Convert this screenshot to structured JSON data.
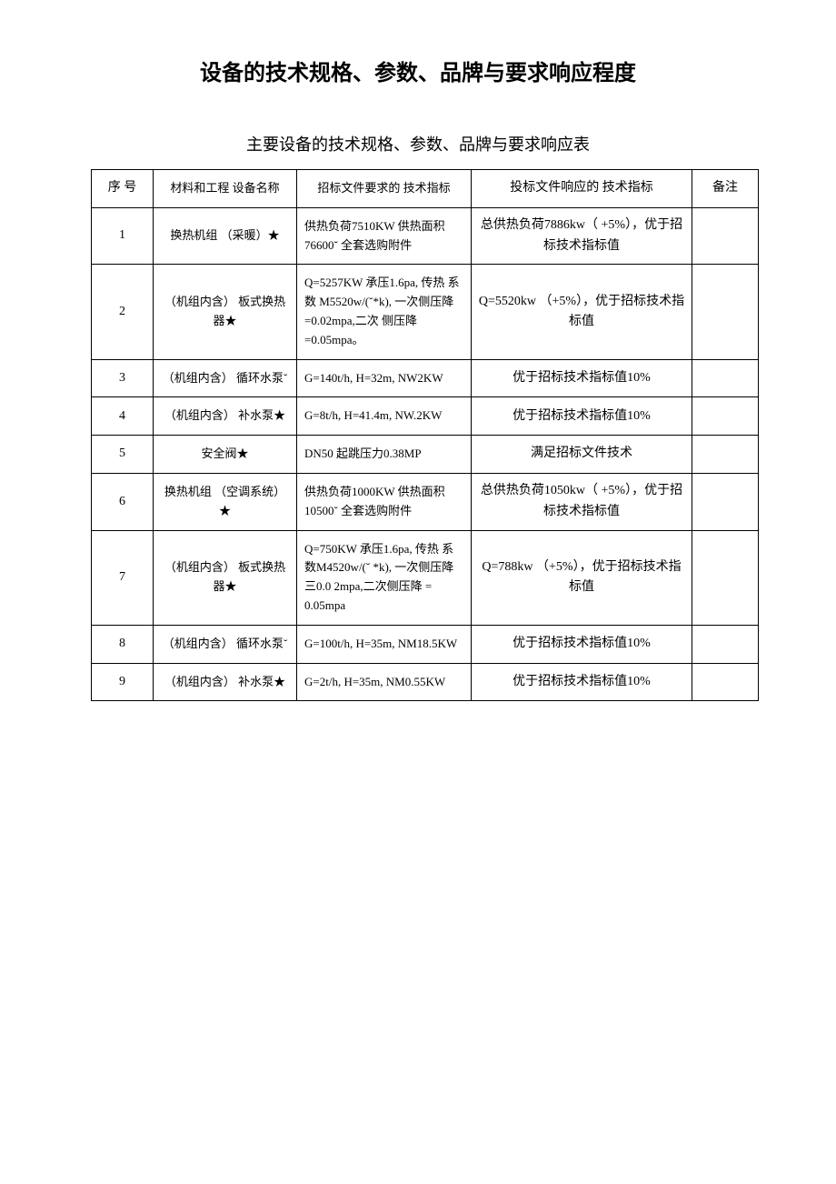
{
  "main_title": "设备的技术规格、参数、品牌与要求响应程度",
  "sub_title": "主要设备的技术规格、参数、品牌与要求响应表",
  "headers": {
    "seq": "序 号",
    "name": "材料和工程 设备名称",
    "req": "招标文件要求的 技术指标",
    "resp": "投标文件响应的 技术指标",
    "note": "备注"
  },
  "rows": [
    {
      "seq": "1",
      "name": "换热机组 （采暖）★",
      "req": "供热负荷7510KW 供热面积 76600˘ 全套选购附件",
      "resp": "总供热负荷7886kw（ +5%），优于招标技术指标值",
      "note": ""
    },
    {
      "seq": "2",
      "name": "（机组内含） 板式换热器★",
      "req": "Q=5257KW 承压1.6pa, 传热 系数 M5520w/(˘*k), 一次侧压降 =0.02mpa,二次 侧压降=0.05mpa。",
      "resp": "Q=5520kw （+5%），优于招标技术指标值",
      "note": ""
    },
    {
      "seq": "3",
      "name": "（机组内含） 循环水泵˘",
      "req": "G=140t/h, H=32m, NW2KW",
      "resp": "优于招标技术指标值10%",
      "note": ""
    },
    {
      "seq": "4",
      "name": "（机组内含） 补水泵★",
      "req": "G=8t/h, H=41.4m, NW.2KW",
      "resp": "优于招标技术指标值10%",
      "note": ""
    },
    {
      "seq": "5",
      "name": "安全阀★",
      "req": "DN50 起跳压力0.38MP",
      "resp": "满足招标文件技术",
      "note": ""
    },
    {
      "seq": "6",
      "name": "换热机组 （空调系统）★",
      "req": "供热负荷1000KW 供热面积 10500˘ 全套选购附件",
      "resp": "总供热负荷1050kw（ +5%），优于招标技术指标值",
      "note": ""
    },
    {
      "seq": "7",
      "name": "（机组内含） 板式换热器★",
      "req": "Q=750KW 承压1.6pa, 传热 系数M4520w/(˘ *k), 一次侧压降三0.0 2mpa,二次侧压降 = 0.05mpa",
      "resp": "Q=788kw （+5%），优于招标技术指标值",
      "note": ""
    },
    {
      "seq": "8",
      "name": "（机组内含） 循环水泵˘",
      "req": "G=100t/h, H=35m, NM18.5KW",
      "resp": "优于招标技术指标值10%",
      "note": ""
    },
    {
      "seq": "9",
      "name": "（机组内含） 补水泵★",
      "req": "G=2t/h, H=35m, NM0.55KW",
      "resp": "优于招标技术指标值10%",
      "note": ""
    }
  ]
}
